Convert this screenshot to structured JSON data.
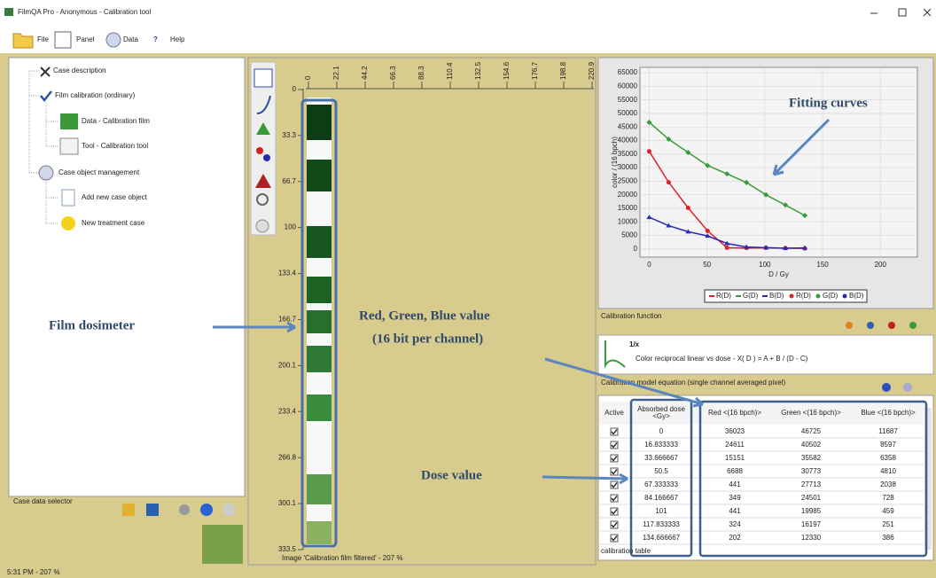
{
  "title_bar": {
    "title": "FilmQA Pro - Anonymous - Calibration tool"
  },
  "toolbar": [
    "File",
    "Panel",
    "Data",
    "Help"
  ],
  "tree": [
    "Case description",
    "Film calibration (ordinary)",
    "Data - Calibration film",
    "Tool - Calibration tool",
    "Case object management",
    "Add new case object",
    "New treatment case"
  ],
  "case_data_selector": "Case data selector",
  "film": {
    "top_ruler": [
      0,
      22.1,
      44.2,
      66.3,
      88.3,
      110.4,
      132.5,
      154.6,
      176.7,
      198.8,
      220.9
    ],
    "left_ruler": [
      0,
      33.3,
      66.7,
      100,
      133.4,
      166.7,
      200.1,
      233.4,
      266.8,
      300.1,
      333.5
    ],
    "status": "Image 'Calibration film filtered' - 207 %"
  },
  "chart": {
    "type": "scatter",
    "y_label": "color / (16 bpch)",
    "x_label": "D / Gy",
    "xlim": [
      -8,
      232
    ],
    "ylim": [
      -3000,
      67000
    ],
    "xticks": [
      0,
      50,
      100,
      150,
      200
    ],
    "yticks": [
      0,
      5000,
      10000,
      15000,
      20000,
      25000,
      30000,
      35000,
      40000,
      45000,
      50000,
      55000,
      60000,
      65000
    ],
    "grid": true,
    "legend": [
      "R(D)",
      "G(D)",
      "B(D)",
      "R(D)",
      "G(D)",
      "B(D)"
    ],
    "colors": [
      "#e02028",
      "#3a9a3a",
      "#2a2ab8"
    ]
  },
  "calibration_function": {
    "label": "Calibration function",
    "name": "1/x",
    "description": "Color reciprocal linear vs dose - X( D ) = A + B / (D - C)"
  },
  "model_label": "Calibration model equation (single channel averaged pixel)",
  "table": {
    "columns": [
      [
        "Active"
      ],
      [
        "Absorbed dose",
        "<Gy>"
      ],
      [
        "Red <(16 bpch)>"
      ],
      [
        "Green <(16 bpch)>"
      ],
      [
        "Blue <(16 bpch)>"
      ]
    ],
    "rows": [
      [
        true,
        0,
        36023,
        46725,
        11687
      ],
      [
        true,
        16.833333,
        24611,
        40502,
        8597
      ],
      [
        true,
        33.666667,
        15151,
        35582,
        6358
      ],
      [
        true,
        50.5,
        6688,
        30773,
        4810
      ],
      [
        true,
        67.333333,
        441,
        27713,
        2038
      ],
      [
        true,
        84.166667,
        349,
        24501,
        728
      ],
      [
        true,
        101,
        441,
        19985,
        459
      ],
      [
        true,
        117.833333,
        324,
        16197,
        251
      ],
      [
        true,
        134.666667,
        202,
        12330,
        386
      ]
    ]
  },
  "table_label": "calibration table",
  "annotations": {
    "fitting": "Fitting curves",
    "film": "Film dosimeter",
    "rgb": [
      "Red, Green, Blue value",
      "(16 bit per channel)"
    ],
    "dose": "Dose value"
  },
  "status_bar": "5:31 PM - 207 %"
}
